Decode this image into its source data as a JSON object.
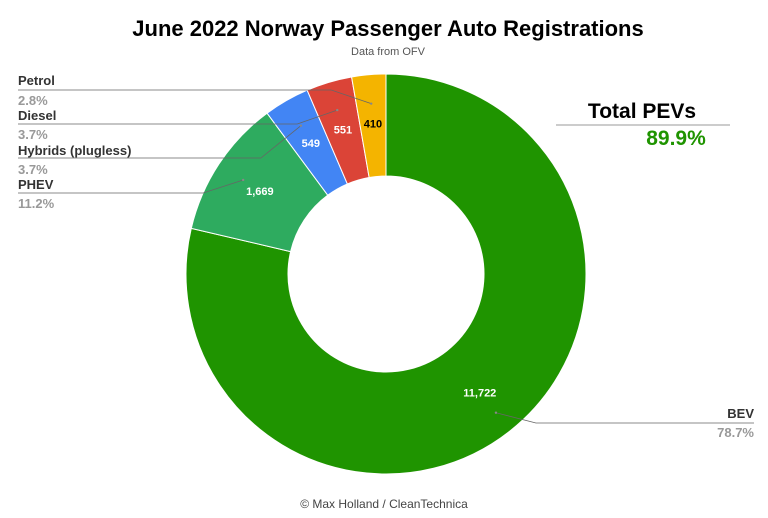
{
  "chart_data": {
    "type": "pie",
    "donut": true,
    "title": "June 2022 Norway Passenger Auto Registrations",
    "subtitle": "Data from OFV",
    "footer": "© Max Holland / CleanTechnica",
    "slices": [
      {
        "name": "BEV",
        "value": 11722,
        "value_label": "11,722",
        "percent_label": "78.7%",
        "color": "#1f9400",
        "label_color": "#ffffff"
      },
      {
        "name": "PHEV",
        "value": 1669,
        "value_label": "1,669",
        "percent_label": "11.2%",
        "color": "#2eab5f",
        "label_color": "#ffffff"
      },
      {
        "name": "Hybrids (plugless)",
        "value": 549,
        "value_label": "549",
        "percent_label": "3.7%",
        "color": "#4285f4",
        "label_color": "#ffffff"
      },
      {
        "name": "Diesel",
        "value": 551,
        "value_label": "551",
        "percent_label": "3.7%",
        "color": "#db4437",
        "label_color": "#ffffff"
      },
      {
        "name": "Petrol",
        "value": 410,
        "value_label": "410",
        "percent_label": "2.8%",
        "color": "#f4b400",
        "label_color": "#000000"
      }
    ],
    "annotation": {
      "title": "Total PEVs",
      "value": "89.9%",
      "value_color": "#1f9400"
    }
  }
}
